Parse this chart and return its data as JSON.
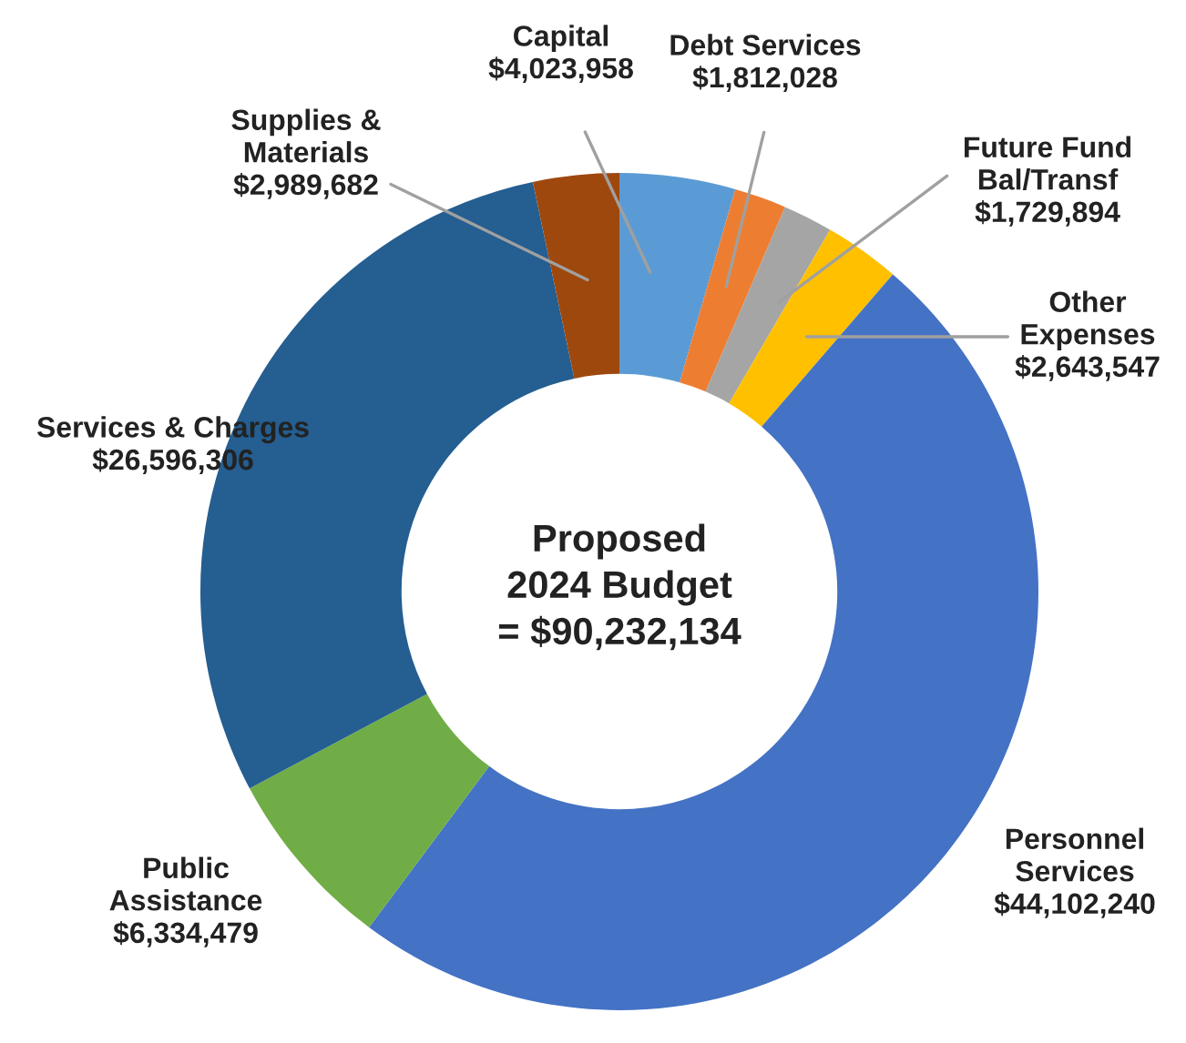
{
  "chart_data": {
    "type": "donut",
    "title": "Proposed\n2024 Budget\n= $90,232,134",
    "categories": [
      "Capital",
      "Debt Services",
      "Future Fund\nBal/Transf",
      "Other\nExpenses",
      "Personnel\nServices",
      "Public\nAssistance",
      "Services & Charges",
      "Supplies &\nMaterials"
    ],
    "values": [
      4023958,
      1812028,
      1729894,
      2643547,
      44102240,
      6334479,
      26596306,
      2989682
    ],
    "value_labels": [
      "$4,023,958",
      "$1,812,028",
      "$1,729,894",
      "$2,643,547",
      "$44,102,240",
      "$6,334,479",
      "$26,596,306",
      "$2,989,682"
    ],
    "colors": [
      "#5b9bd5",
      "#ed7d31",
      "#a5a5a5",
      "#ffc000",
      "#4472c4",
      "#70ad47",
      "#255e91",
      "#9e480e"
    ],
    "legend": false
  }
}
